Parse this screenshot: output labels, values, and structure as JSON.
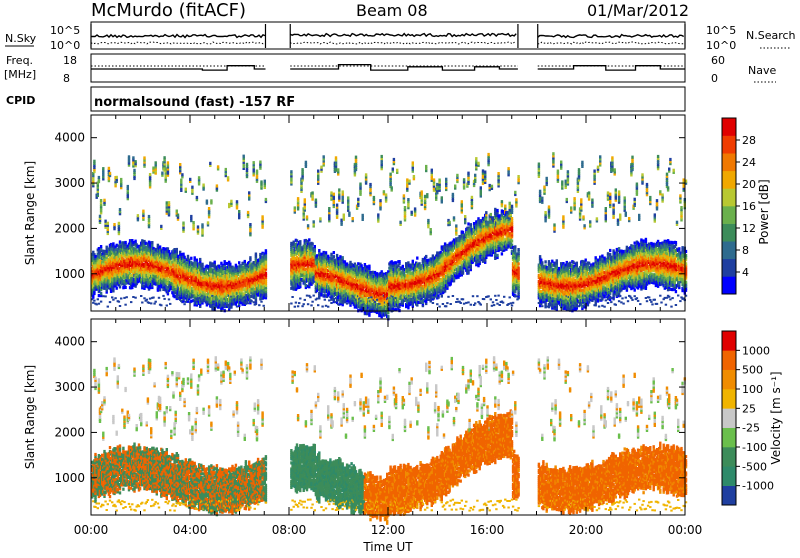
{
  "header": {
    "station": "McMurdo (fitACF)",
    "beam": "Beam 08",
    "date": "01/Mar/2012"
  },
  "status_panels": {
    "nsky_label": "N.Sky",
    "nsky_ticks": [
      "10^5",
      "10^0"
    ],
    "nsearch_label": "N.Search",
    "nsearch_ticks": [
      "10^5",
      "10^0"
    ],
    "freq_label_1": "Freq.",
    "freq_label_2": "[MHz]",
    "freq_ticks": [
      "18",
      "8"
    ],
    "nave_label": "Nave",
    "nave_ticks": [
      "60",
      "0"
    ],
    "cpid_label": "CPID",
    "cpid_text": "normalsound (fast) -157 RF"
  },
  "chart_data": [
    {
      "type": "heatmap",
      "name": "power",
      "ylabel": "Slant Range [km]",
      "xlabel": "",
      "ylim": [
        180,
        4500
      ],
      "yticks": [
        "4000",
        "3000",
        "2000",
        "1000"
      ],
      "colorbar": {
        "label": "Power [dB]",
        "ticks": [
          "28",
          "24",
          "20",
          "16",
          "12",
          "8",
          "4"
        ],
        "colors": [
          "#0000ff",
          "#1f3fa0",
          "#2e6b8e",
          "#3c8c5a",
          "#6ab04c",
          "#b8c832",
          "#f0a800",
          "#f07800",
          "#f03c00",
          "#e00000"
        ]
      }
    },
    {
      "type": "heatmap",
      "name": "velocity",
      "ylabel": "Slant Range [km]",
      "xlabel": "Time UT",
      "ylim": [
        180,
        4500
      ],
      "yticks": [
        "4000",
        "3000",
        "2000",
        "1000"
      ],
      "colorbar": {
        "label": "Velocity [m s⁻¹]",
        "ticks": [
          "1000",
          "500",
          "100",
          "25",
          "-25",
          "-100",
          "-500",
          "-1000"
        ],
        "colors": [
          "#1f3fa0",
          "#2e8a6a",
          "#3c8c5a",
          "#6abf4c",
          "#c8c8c8",
          "#f0b400",
          "#f08c00",
          "#f06400",
          "#e00000"
        ]
      },
      "xticks": [
        "00:00",
        "04:00",
        "08:00",
        "12:00",
        "16:00",
        "20:00",
        "00:00"
      ]
    }
  ]
}
